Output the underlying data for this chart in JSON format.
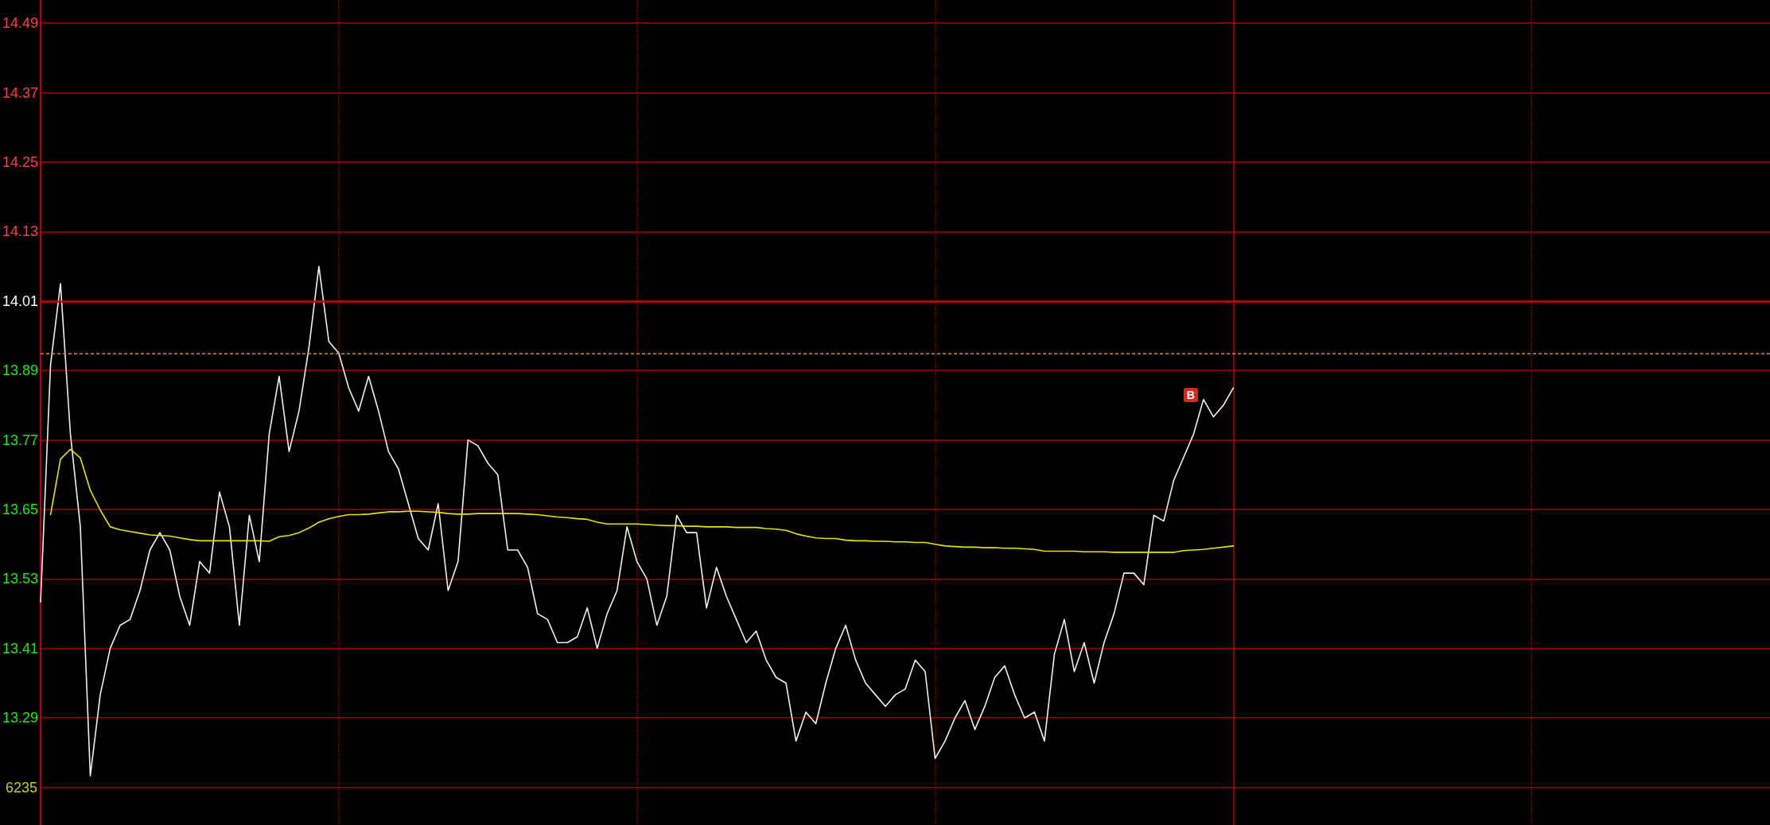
{
  "chart_data": {
    "type": "line",
    "categories": [
      null,
      null,
      null,
      null,
      null,
      null,
      null,
      null,
      null,
      null,
      null,
      null,
      null,
      null,
      null,
      null,
      null,
      null,
      null,
      null,
      null,
      null,
      null,
      null,
      null,
      null,
      null,
      null,
      null,
      null,
      null,
      null,
      null,
      null,
      null,
      null,
      null,
      null,
      null,
      null,
      null,
      null,
      null,
      null,
      null,
      null,
      null,
      null,
      null,
      null,
      null,
      null,
      null,
      null,
      null,
      null,
      null,
      null,
      null,
      null,
      null,
      null,
      null,
      null,
      null,
      null,
      null,
      null,
      null,
      null,
      null,
      null,
      null,
      null,
      null,
      null,
      null,
      null,
      null,
      null,
      null,
      null,
      null,
      null,
      null,
      null,
      null,
      null,
      null,
      null,
      null,
      null,
      null,
      null,
      null,
      null,
      null,
      null,
      null,
      null,
      null,
      null,
      null,
      null,
      null,
      null,
      null,
      null,
      null,
      null,
      null,
      null,
      null,
      null,
      null,
      null,
      null,
      null,
      null,
      null,
      null,
      null,
      null,
      null,
      null,
      null,
      null,
      null,
      null,
      null,
      null,
      null,
      null,
      null,
      null,
      null,
      null,
      null,
      null,
      null,
      null,
      null,
      null,
      null,
      null,
      null,
      null,
      null,
      null,
      null,
      null,
      null,
      null,
      null,
      null,
      null,
      null,
      null,
      null,
      null,
      null,
      null,
      null,
      null,
      null,
      null,
      null,
      null,
      null,
      null,
      null,
      null,
      null,
      null,
      null
    ],
    "series": [
      {
        "color": "#f0f0f0",
        "values": [
          13.49,
          13.9,
          14.04,
          13.78,
          13.62,
          13.19,
          13.33,
          13.41,
          13.45,
          13.46,
          13.51,
          13.58,
          13.61,
          13.58,
          13.5,
          13.45,
          13.56,
          13.54,
          13.68,
          13.62,
          13.45,
          13.64,
          13.56,
          13.78,
          13.88,
          13.75,
          13.82,
          13.93,
          14.07,
          13.94,
          13.92,
          13.86,
          13.82,
          13.88,
          13.82,
          13.75,
          13.72,
          13.66,
          13.6,
          13.58,
          13.66,
          13.51,
          13.56,
          13.77,
          13.76,
          13.73,
          13.71,
          13.58,
          13.58,
          13.55,
          13.47,
          13.46,
          13.42,
          13.42,
          13.43,
          13.48,
          13.41,
          13.47,
          13.51,
          13.62,
          13.56,
          13.53,
          13.45,
          13.5,
          13.64,
          13.61,
          13.61,
          13.48,
          13.55,
          13.5,
          13.46,
          13.42,
          13.44,
          13.39,
          13.36,
          13.35,
          13.25,
          13.3,
          13.28,
          13.35,
          13.41,
          13.45,
          13.39,
          13.35,
          13.33,
          13.31,
          13.33,
          13.34,
          13.39,
          13.37,
          13.22,
          13.25,
          13.29,
          13.32,
          13.27,
          13.31,
          13.36,
          13.38,
          13.33,
          13.29,
          13.3,
          13.25,
          13.4,
          13.46,
          13.37,
          13.42,
          13.35,
          13.42,
          13.47,
          13.54,
          13.54,
          13.52,
          13.64,
          13.63,
          13.7,
          13.74,
          13.78,
          13.84,
          13.81,
          13.83,
          13.86,
          null,
          null,
          null,
          null,
          null,
          null,
          null,
          null,
          null,
          null,
          null,
          null,
          null,
          null,
          null,
          null,
          null,
          null,
          null,
          null,
          null,
          null,
          null,
          null,
          null,
          null,
          null,
          null,
          null,
          null,
          null,
          null,
          null,
          null,
          null,
          null,
          null,
          null,
          null,
          null,
          null,
          null,
          null,
          null,
          null,
          null,
          null,
          null,
          null,
          null,
          null,
          null,
          null,
          null
        ]
      },
      {
        "color": "#e6e600",
        "values": [
          null,
          13.641,
          13.737,
          13.754,
          13.739,
          13.683,
          13.649,
          13.62,
          13.615,
          13.612,
          13.609,
          13.606,
          13.605,
          13.604,
          13.601,
          13.598,
          13.596,
          13.596,
          13.596,
          13.596,
          13.596,
          13.596,
          13.596,
          13.595,
          13.603,
          13.605,
          13.61,
          13.618,
          13.628,
          13.634,
          13.638,
          13.641,
          13.641,
          13.642,
          13.644,
          13.646,
          13.646,
          13.647,
          13.647,
          13.646,
          13.645,
          13.643,
          13.642,
          13.642,
          13.643,
          13.643,
          13.643,
          13.643,
          13.643,
          13.642,
          13.641,
          13.639,
          13.637,
          13.636,
          13.634,
          13.633,
          13.628,
          13.625,
          13.625,
          13.625,
          13.625,
          13.624,
          13.623,
          13.622,
          13.622,
          13.621,
          13.621,
          13.62,
          13.62,
          13.62,
          13.619,
          13.619,
          13.619,
          13.617,
          13.616,
          13.614,
          13.608,
          13.604,
          13.601,
          13.6,
          13.6,
          13.597,
          13.596,
          13.596,
          13.595,
          13.595,
          13.594,
          13.594,
          13.593,
          13.593,
          13.59,
          13.587,
          13.586,
          13.585,
          13.585,
          13.584,
          13.584,
          13.583,
          13.583,
          13.582,
          13.581,
          13.578,
          13.578,
          13.578,
          13.578,
          13.577,
          13.577,
          13.577,
          13.576,
          13.576,
          13.576,
          13.576,
          13.576,
          13.576,
          13.576,
          13.579,
          13.58,
          13.581,
          13.583,
          13.585,
          13.587,
          null,
          null,
          null,
          null,
          null,
          null,
          null,
          null,
          null,
          null,
          null,
          null,
          null,
          null,
          null,
          null,
          null,
          null,
          null,
          null,
          null,
          null,
          null,
          null,
          null,
          null,
          null,
          null,
          null,
          null,
          null,
          null,
          null,
          null,
          null,
          null,
          null,
          null,
          null,
          null,
          null,
          null,
          null,
          null,
          null,
          null,
          null,
          null,
          null,
          null,
          null,
          null,
          null,
          null
        ]
      }
    ],
    "ylim": [
      13.105,
      14.53
    ],
    "yticks": [
      {
        "value": 13.17,
        "label": null
      },
      13.29,
      13.41,
      13.53,
      13.65,
      13.77,
      13.89,
      14.01,
      14.13,
      14.25,
      14.37,
      14.49
    ],
    "grid": true,
    "tick_labels": "y",
    "marker": "none",
    "ref_lines": [
      {
        "axis": "y",
        "value": 14.01,
        "color": "#c80000"
      },
      {
        "axis": "y",
        "value": 13.92,
        "color": "#e8900c",
        "line_style": "dashed"
      }
    ],
    "annotations": [
      {
        "text": "B",
        "y": 13.848
      },
      "6235"
    ]
  }
}
